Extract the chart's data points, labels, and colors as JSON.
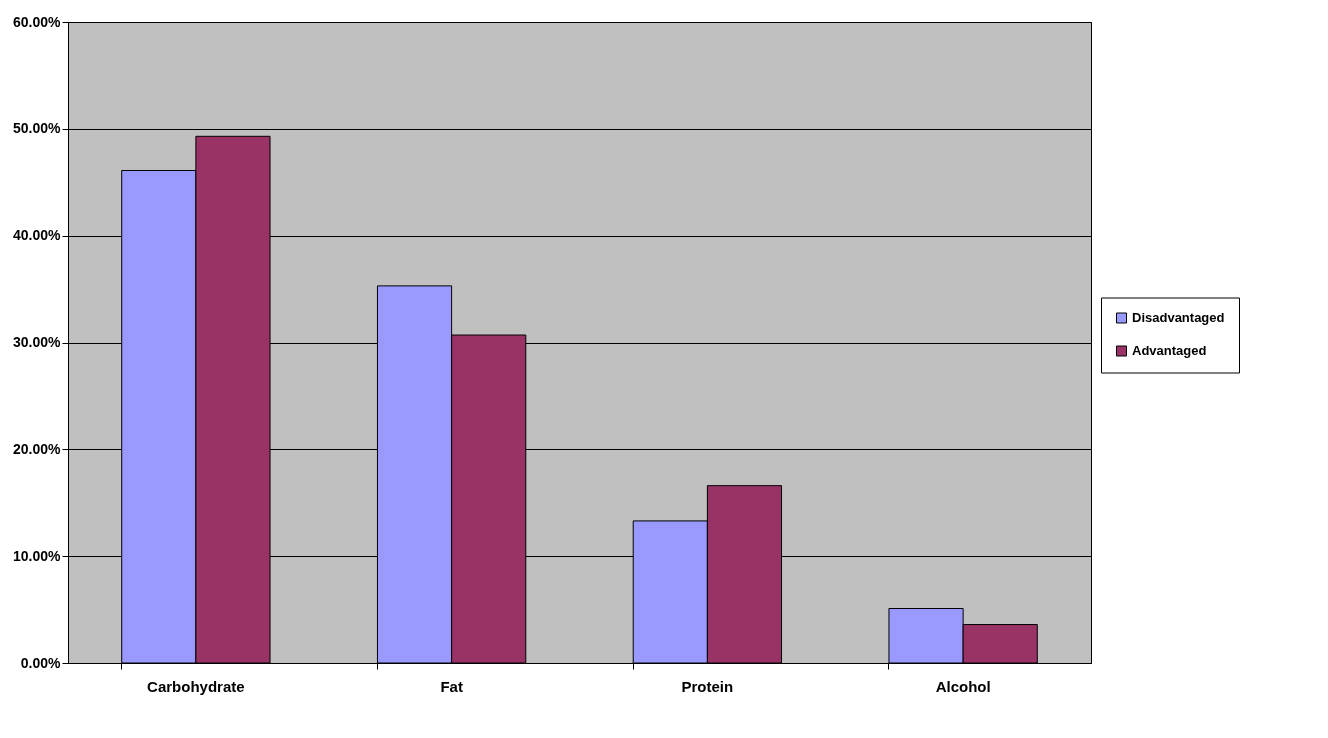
{
  "chart_data": {
    "type": "bar",
    "categories": [
      "Carbohydrate",
      "Fat",
      "Protein",
      "Alcohol"
    ],
    "series": [
      {
        "name": "Disadvantaged",
        "color": "#9999ff",
        "values": [
          46.1,
          35.3,
          13.3,
          5.1
        ]
      },
      {
        "name": "Advantaged",
        "color": "#993366",
        "values": [
          49.3,
          30.7,
          16.6,
          3.6
        ]
      }
    ],
    "ylim": [
      0,
      60
    ],
    "yticks": [
      {
        "value": 0,
        "label": "0.00%"
      },
      {
        "value": 10,
        "label": "10.00%"
      },
      {
        "value": 20,
        "label": "20.00%"
      },
      {
        "value": 30,
        "label": "30.00%"
      },
      {
        "value": 40,
        "label": "40.00%"
      },
      {
        "value": 50,
        "label": "50.00%"
      },
      {
        "value": 60,
        "label": "60.00%"
      }
    ],
    "grid": "y",
    "legend": "right"
  }
}
